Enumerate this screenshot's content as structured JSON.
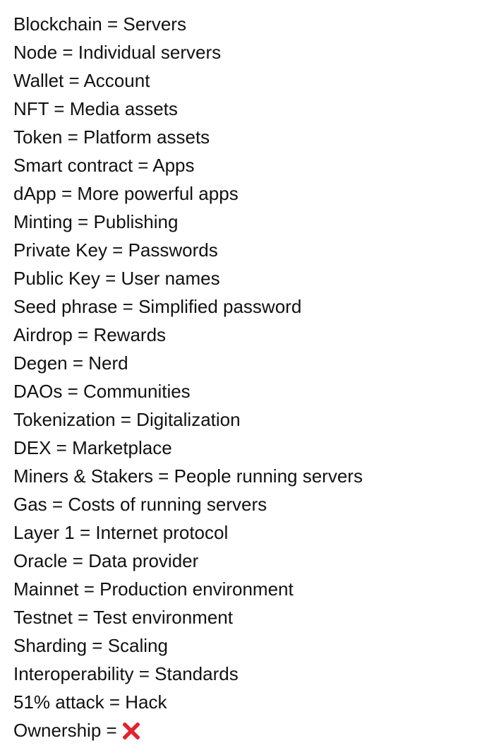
{
  "glossary": {
    "items": [
      "Blockchain = Servers",
      "Node = Individual servers",
      "Wallet = Account",
      "NFT = Media assets",
      "Token = Platform assets",
      "Smart contract = Apps",
      "dApp = More powerful apps",
      "Minting = Publishing",
      "Private Key = Passwords",
      "Public Key = User names",
      "Seed phrase = Simplified password",
      "Airdrop = Rewards",
      "Degen = Nerd",
      "DAOs = Communities",
      "Tokenization = Digitalization",
      "DEX = Marketplace",
      "Miners & Stakers = People running servers",
      "Gas = Costs of running servers",
      "Layer 1 = Internet protocol",
      "Oracle = Data provider",
      "Mainnet = Production environment",
      "Testnet = Test environment",
      "Sharding = Scaling",
      "Interoperability = Standards",
      "51% attack = Hack"
    ],
    "last_item": {
      "text": "Ownership =",
      "icon": "cross-mark-icon",
      "icon_color": "#e0242d"
    }
  }
}
